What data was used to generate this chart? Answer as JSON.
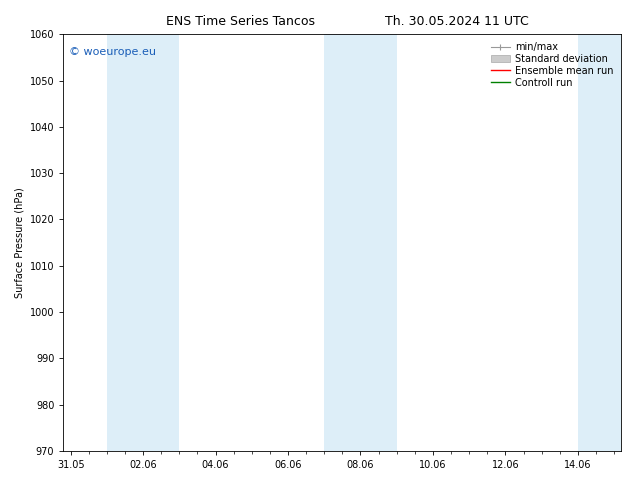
{
  "title1": "ENS Time Series Tancos",
  "title2": "Th. 30.05.2024 11 UTC",
  "ylabel": "Surface Pressure (hPa)",
  "ylim": [
    970,
    1060
  ],
  "yticks": [
    970,
    980,
    990,
    1000,
    1010,
    1020,
    1030,
    1040,
    1050,
    1060
  ],
  "xtick_labels": [
    "31.05",
    "02.06",
    "04.06",
    "06.06",
    "08.06",
    "10.06",
    "12.06",
    "14.06"
  ],
  "xtick_positions": [
    0,
    2,
    4,
    6,
    8,
    10,
    12,
    14
  ],
  "xlim": [
    -0.2,
    15.2
  ],
  "shaded_bands": [
    {
      "xmin": 1,
      "xmax": 3
    },
    {
      "xmin": 7,
      "xmax": 9
    },
    {
      "xmin": 14,
      "xmax": 15.5
    }
  ],
  "shaded_color": "#ddeef8",
  "watermark": "© woeurope.eu",
  "watermark_color": "#1a5eb8",
  "background_color": "#ffffff",
  "title_fontsize": 9,
  "axis_fontsize": 7,
  "tick_fontsize": 7,
  "legend_fontsize": 7
}
